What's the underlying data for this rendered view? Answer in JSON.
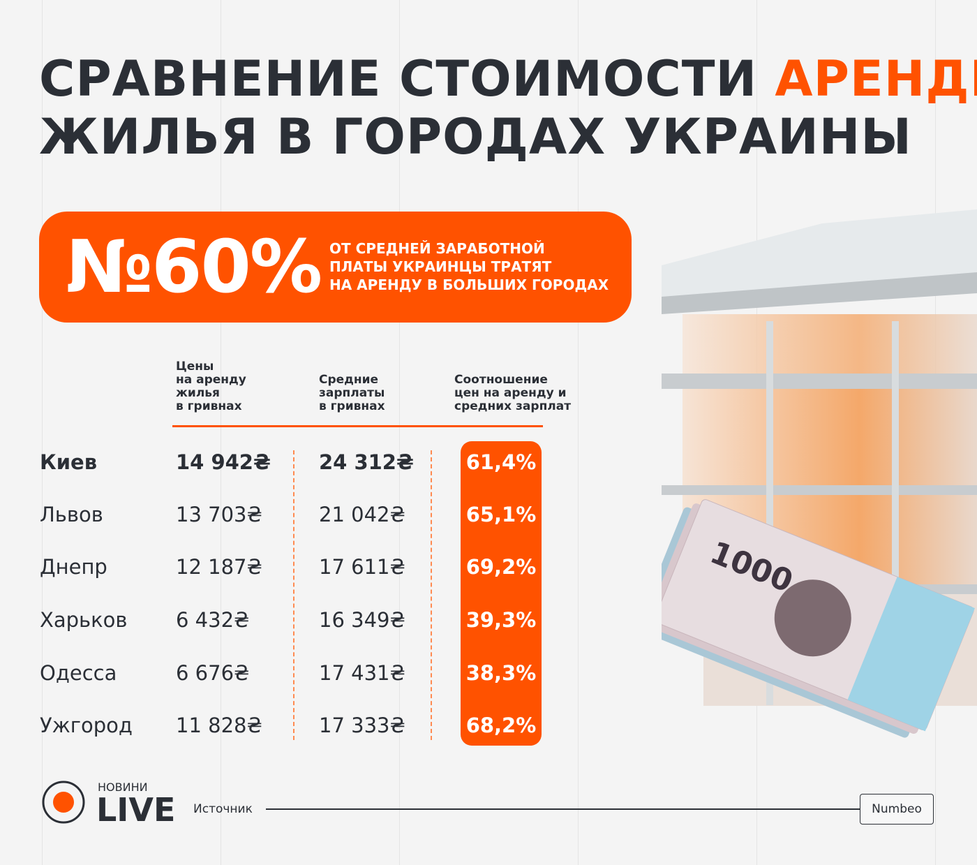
{
  "title": {
    "line1_part1": "СРАВНЕНИЕ СТОИМОСТИ ",
    "line1_highlight": "АРЕНДЫ",
    "line2": "ЖИЛЬЯ  В ГОРОДАХ УКРАИНЫ"
  },
  "banner": {
    "big_value": "№60%",
    "text_lines": [
      "ОТ СРЕДНЕЙ ЗАРАБОТНОЙ",
      "ПЛАТЫ УКРАИНЦЫ ТРАТЯТ",
      "НА АРЕНДУ В БОЛЬШИХ ГОРОДАХ"
    ]
  },
  "table": {
    "headers": [
      [
        "Цены",
        "на аренду",
        "жилья",
        "в гривнах"
      ],
      [
        "Средние",
        "зарплаты",
        "в гривнах"
      ],
      [
        "Соотношение",
        "цен на аренду и",
        "средних зарплат"
      ]
    ],
    "rows": [
      {
        "city": "Киев",
        "rent": "14 942₴",
        "salary": "24 312₴",
        "ratio": "61,4%"
      },
      {
        "city": "Львов",
        "rent": "13 703₴",
        "salary": "21 042₴",
        "ratio": "65,1%"
      },
      {
        "city": "Днепр",
        "rent": "12 187₴",
        "salary": "17 611₴",
        "ratio": "69,2%"
      },
      {
        "city": "Харьков",
        "rent": "6 432₴",
        "salary": "16 349₴",
        "ratio": "39,3%"
      },
      {
        "city": "Одесса",
        "rent": "6 676₴",
        "salary": "17 431₴",
        "ratio": "38,3%"
      },
      {
        "city": "Ужгород",
        "rent": "11 828₴",
        "salary": "17 333₴",
        "ratio": "68,2%"
      }
    ]
  },
  "logo": {
    "top": "НОВИНИ",
    "bottom": "LIVE"
  },
  "source": {
    "label": "Источник",
    "value": "Numbeo"
  },
  "banknote": {
    "denomination": "1000"
  },
  "colors": {
    "accent": "#ff5200",
    "text": "#2b2f36",
    "background": "#f4f4f4"
  }
}
